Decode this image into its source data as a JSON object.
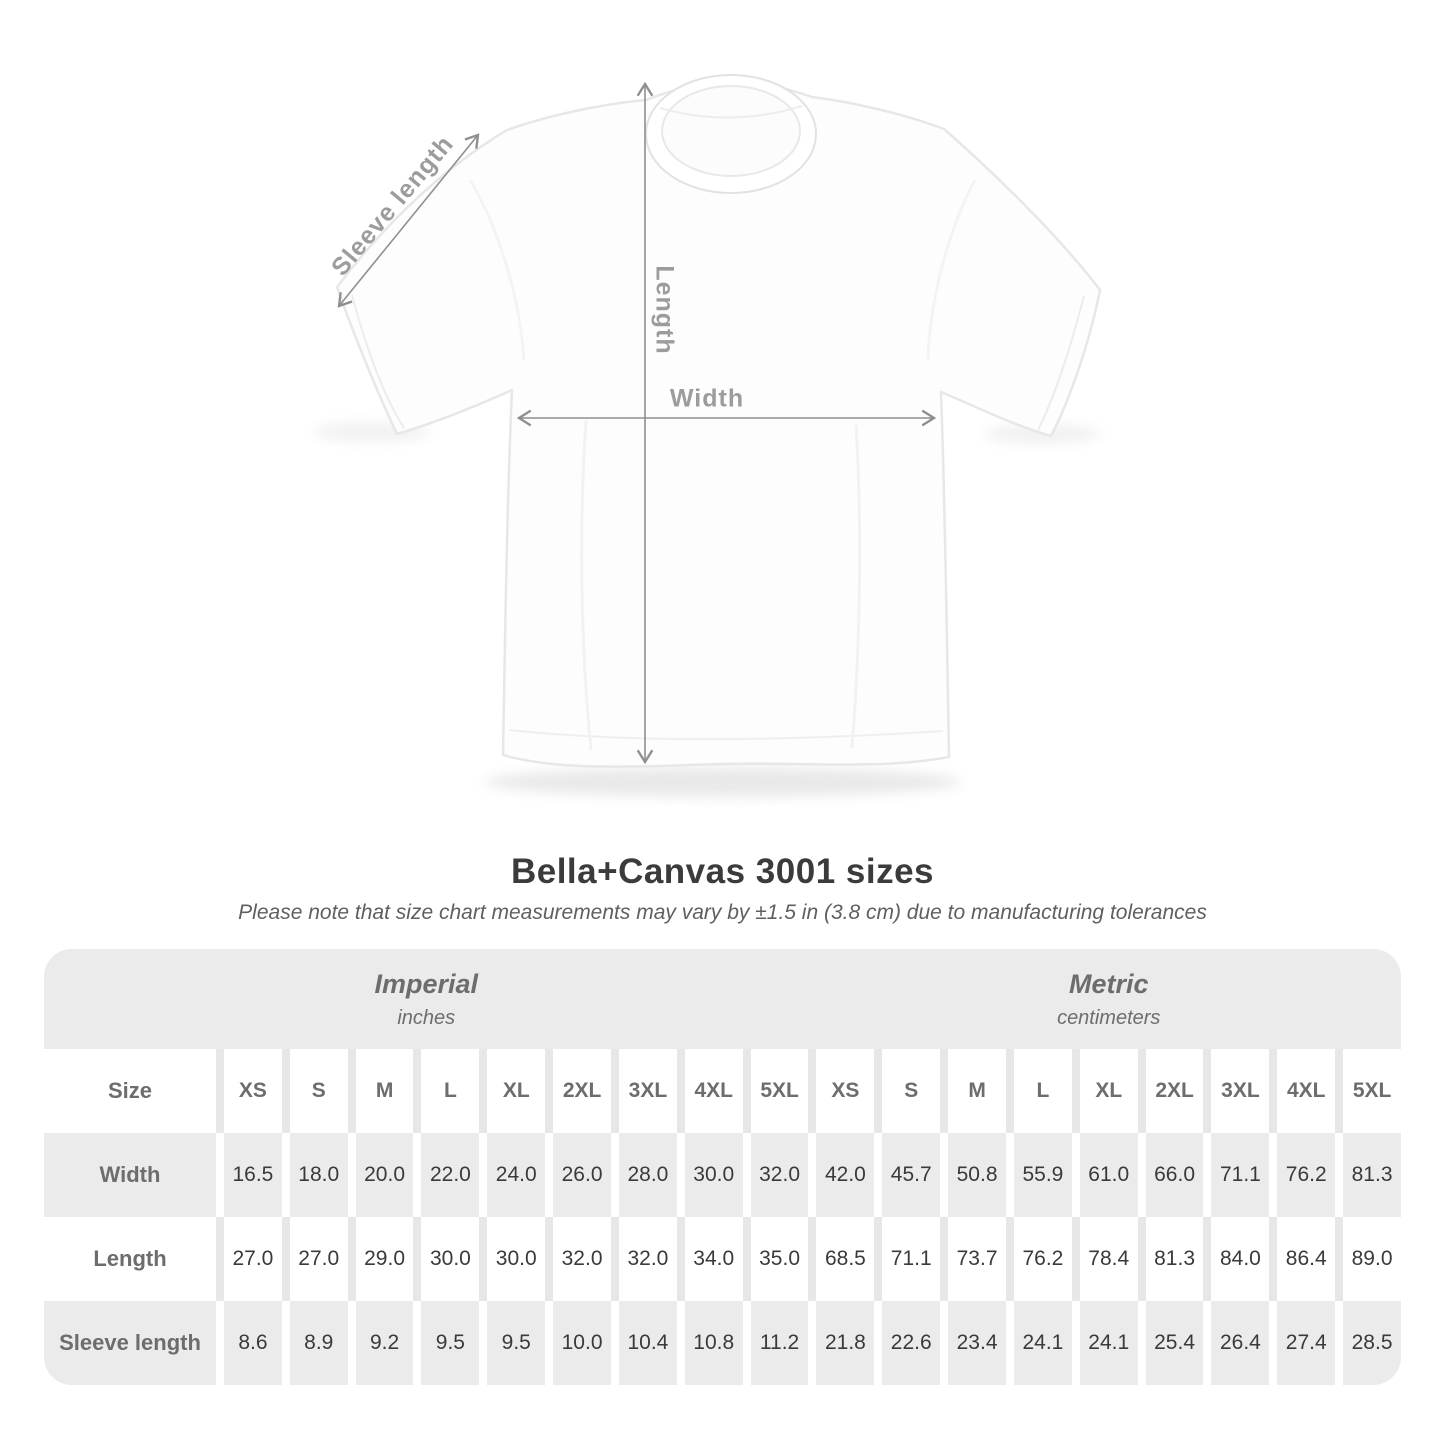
{
  "diagram": {
    "sleeve_label": "Sleeve length",
    "length_label": "Length",
    "width_label": "Width"
  },
  "header": {
    "title": "Bella+Canvas 3001 sizes",
    "subtitle": "Please note that size chart measurements may vary by ±1.5 in (3.8 cm) due to manufacturing tolerances"
  },
  "table": {
    "size_label": "Size",
    "sections": [
      {
        "name": "Imperial",
        "unit": "inches"
      },
      {
        "name": "Metric",
        "unit": "centimeters"
      }
    ],
    "sizes": [
      "XS",
      "S",
      "M",
      "L",
      "XL",
      "2XL",
      "3XL",
      "4XL",
      "5XL"
    ],
    "rows": [
      {
        "label": "Width",
        "imperial": [
          "16.5",
          "18.0",
          "20.0",
          "22.0",
          "24.0",
          "26.0",
          "28.0",
          "30.0",
          "32.0"
        ],
        "metric": [
          "42.0",
          "45.7",
          "50.8",
          "55.9",
          "61.0",
          "66.0",
          "71.1",
          "76.2",
          "81.3"
        ]
      },
      {
        "label": "Length",
        "imperial": [
          "27.0",
          "27.0",
          "29.0",
          "30.0",
          "30.0",
          "32.0",
          "32.0",
          "34.0",
          "35.0"
        ],
        "metric": [
          "68.5",
          "71.1",
          "73.7",
          "76.2",
          "78.4",
          "81.3",
          "84.0",
          "86.4",
          "89.0"
        ]
      },
      {
        "label": "Sleeve length",
        "imperial": [
          "8.6",
          "8.9",
          "9.2",
          "9.5",
          "9.5",
          "10.0",
          "10.4",
          "10.8",
          "11.2"
        ],
        "metric": [
          "21.8",
          "22.6",
          "23.4",
          "24.1",
          "24.1",
          "25.4",
          "26.4",
          "27.4",
          "28.5"
        ]
      }
    ]
  },
  "colors": {
    "row_gray": "#ebebeb",
    "value_text": "#3a3a3a",
    "header_text": "#6d6d6d",
    "diagram_label": "#9c9c9c",
    "arrow": "#8f8f8f"
  },
  "chart_data": {
    "type": "table",
    "title": "Bella+Canvas 3001 sizes",
    "note": "Measurements may vary by ±1.5 in (3.8 cm) due to manufacturing tolerances",
    "sections": [
      "Imperial (inches)",
      "Metric (centimeters)"
    ],
    "columns": [
      "XS",
      "S",
      "M",
      "L",
      "XL",
      "2XL",
      "3XL",
      "4XL",
      "5XL"
    ],
    "rows": [
      {
        "label": "Width",
        "imperial_in": [
          16.5,
          18.0,
          20.0,
          22.0,
          24.0,
          26.0,
          28.0,
          30.0,
          32.0
        ],
        "metric_cm": [
          42.0,
          45.7,
          50.8,
          55.9,
          61.0,
          66.0,
          71.1,
          76.2,
          81.3
        ]
      },
      {
        "label": "Length",
        "imperial_in": [
          27.0,
          27.0,
          29.0,
          30.0,
          30.0,
          32.0,
          32.0,
          34.0,
          35.0
        ],
        "metric_cm": [
          68.5,
          71.1,
          73.7,
          76.2,
          78.4,
          81.3,
          84.0,
          86.4,
          89.0
        ]
      },
      {
        "label": "Sleeve length",
        "imperial_in": [
          8.6,
          8.9,
          9.2,
          9.5,
          9.5,
          10.0,
          10.4,
          10.8,
          11.2
        ],
        "metric_cm": [
          21.8,
          22.6,
          23.4,
          24.1,
          24.1,
          25.4,
          26.4,
          27.4,
          28.5
        ]
      }
    ]
  }
}
